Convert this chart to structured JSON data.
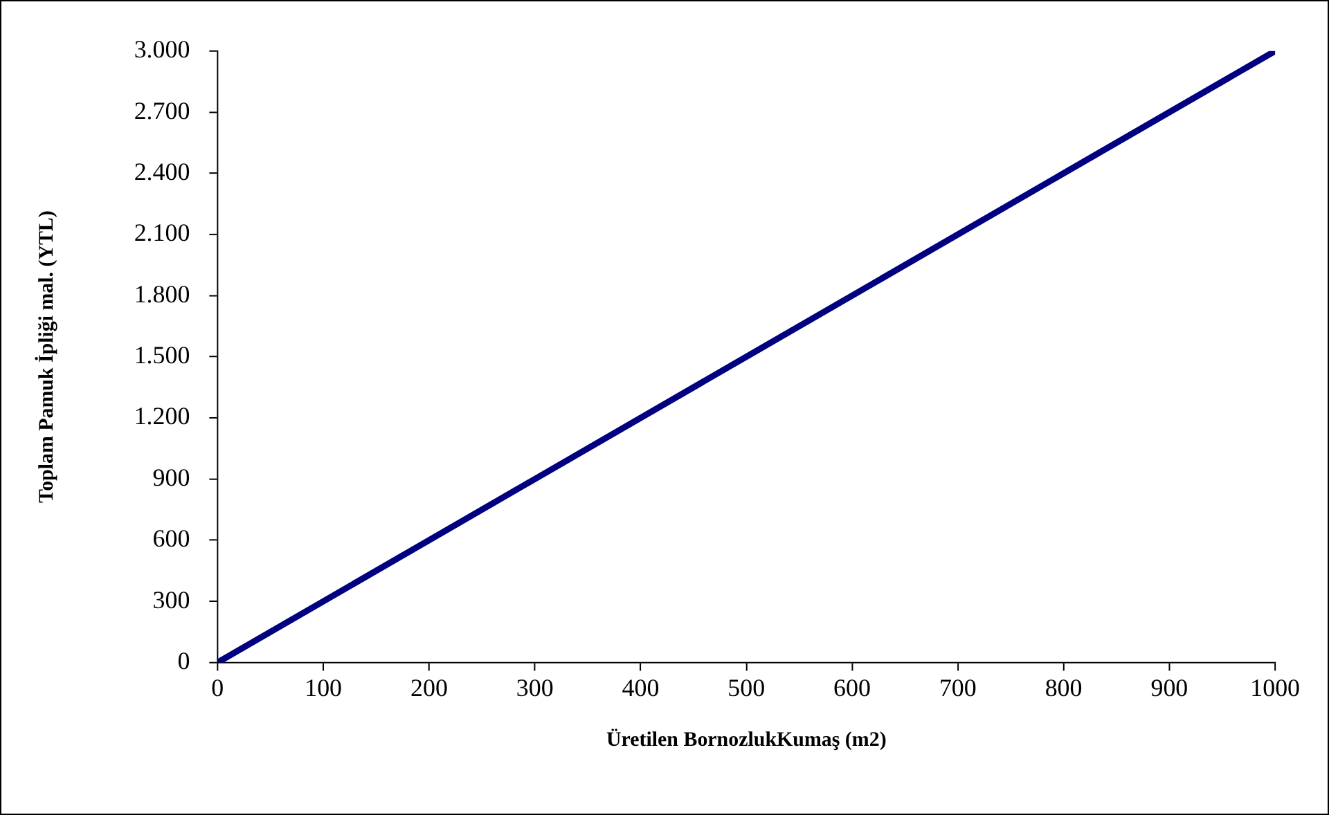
{
  "chart_data": {
    "type": "line",
    "xlabel": "Üretilen BornozlukKumaş (m2)",
    "ylabel": "Toplam Pamuk İpliği mal. (YTL)",
    "x": [
      0,
      1000
    ],
    "series": [
      {
        "color": "#000080",
        "values": [
          0,
          3000
        ]
      }
    ],
    "xlim": [
      0,
      1000
    ],
    "xticks": [
      0,
      100,
      200,
      300,
      400,
      500,
      600,
      700,
      800,
      900,
      1000
    ],
    "ylim": [
      0,
      3000
    ],
    "yticks": [
      0,
      300,
      600,
      900,
      {
        "value": 1200,
        "label": "1.200"
      },
      {
        "value": 1500,
        "label": "1.500"
      },
      {
        "value": 1800,
        "label": "1.800"
      },
      {
        "value": 2100,
        "label": "2.100"
      },
      {
        "value": 2400,
        "label": "2.400"
      },
      {
        "value": 2700,
        "label": "2.700"
      },
      {
        "value": 3000,
        "label": "3.000"
      }
    ],
    "grid": false,
    "legend": false,
    "marker": "none",
    "line_style": "solid"
  }
}
